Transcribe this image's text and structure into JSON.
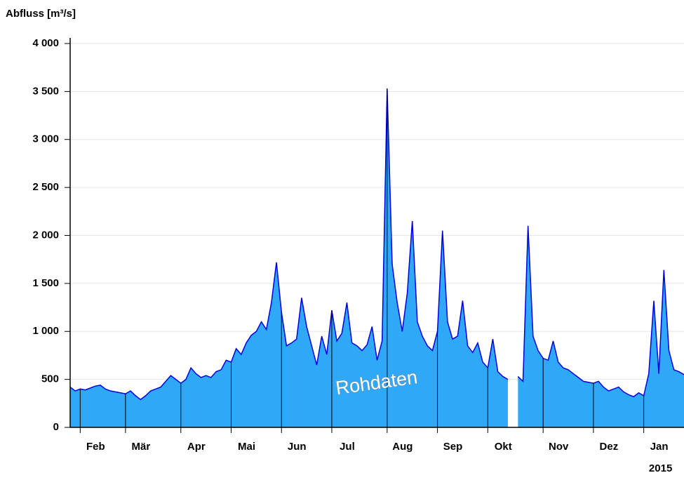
{
  "chart_data": {
    "type": "area",
    "y_axis_label": "Abfluss [m³/s]",
    "annotation": "Rohdaten",
    "year_label": "2015",
    "ylim": [
      0,
      4000
    ],
    "yticks": [
      0,
      500,
      {
        "value": 1000,
        "label": "1 000"
      },
      {
        "value": 1500,
        "label": "1 500"
      },
      {
        "value": 2000,
        "label": "2 000"
      },
      {
        "value": 2500,
        "label": "2 500"
      },
      {
        "value": 3000,
        "label": "3 000"
      },
      {
        "value": 3500,
        "label": "3 500"
      },
      {
        "value": 4000,
        "label": "4 000"
      }
    ],
    "grid": true,
    "categories": [
      null,
      null,
      "Feb",
      null,
      null,
      null,
      null,
      null,
      null,
      null,
      null,
      "Mär",
      null,
      null,
      null,
      null,
      null,
      null,
      null,
      null,
      null,
      null,
      "Apr",
      null,
      null,
      null,
      null,
      null,
      null,
      null,
      null,
      null,
      "Mai",
      null,
      null,
      null,
      null,
      null,
      null,
      null,
      null,
      null,
      "Jun",
      null,
      null,
      null,
      null,
      null,
      null,
      null,
      null,
      null,
      "Jul",
      null,
      null,
      null,
      null,
      null,
      null,
      null,
      null,
      null,
      null,
      "Aug",
      null,
      null,
      null,
      null,
      null,
      null,
      null,
      null,
      null,
      "Sep",
      null,
      null,
      null,
      null,
      null,
      null,
      null,
      null,
      null,
      "Okt",
      null,
      null,
      null,
      null,
      null,
      null,
      null,
      null,
      null,
      null,
      "Nov",
      null,
      null,
      null,
      null,
      null,
      null,
      null,
      null,
      null,
      "Dez",
      null,
      null,
      null,
      null,
      null,
      null,
      null,
      null,
      null,
      "Jan",
      null,
      null,
      null,
      null,
      null,
      null,
      null,
      null
    ],
    "series": [
      {
        "name": null,
        "color": "#0000e0",
        "fill": "#30a8f8",
        "values": [
          420,
          380,
          400,
          390,
          410,
          430,
          440,
          400,
          380,
          370,
          360,
          350,
          380,
          330,
          290,
          330,
          380,
          400,
          420,
          480,
          540,
          500,
          460,
          500,
          620,
          560,
          520,
          540,
          520,
          580,
          600,
          700,
          680,
          820,
          760,
          880,
          960,
          1000,
          1100,
          1020,
          1300,
          1720,
          1200,
          850,
          880,
          920,
          1350,
          1050,
          850,
          650,
          950,
          760,
          1220,
          900,
          980,
          1300,
          880,
          850,
          800,
          860,
          1050,
          700,
          900,
          3530,
          1700,
          1300,
          1000,
          1400,
          2150,
          1100,
          950,
          850,
          800,
          1000,
          2050,
          1100,
          920,
          950,
          1320,
          850,
          780,
          880,
          680,
          620,
          920,
          580,
          530,
          500,
          null,
          530,
          480,
          2100,
          950,
          800,
          720,
          700,
          900,
          680,
          620,
          600,
          560,
          520,
          480,
          470,
          460,
          480,
          420,
          380,
          400,
          420,
          370,
          340,
          320,
          360,
          330,
          560,
          1320,
          560,
          1640,
          800,
          600,
          580,
          550
        ]
      }
    ]
  }
}
